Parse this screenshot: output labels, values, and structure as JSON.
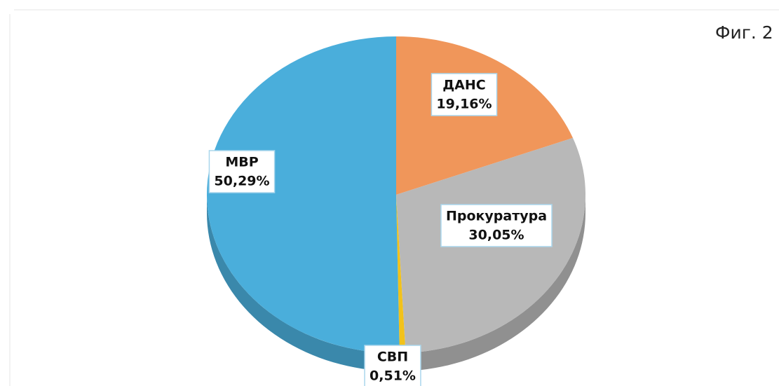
{
  "chart_data": {
    "type": "pie",
    "title": "Фиг. 2",
    "categories": [
      "ДАНС",
      "Прокуратура",
      "СВП",
      "МВР"
    ],
    "values": [
      19.16,
      30.05,
      0.51,
      50.29
    ],
    "value_labels": [
      "19,16%",
      "30,05%",
      "0,51%",
      "50,29%"
    ],
    "colors": [
      "#f0965a",
      "#b8b8b8",
      "#f2c21a",
      "#4aaedb"
    ]
  }
}
